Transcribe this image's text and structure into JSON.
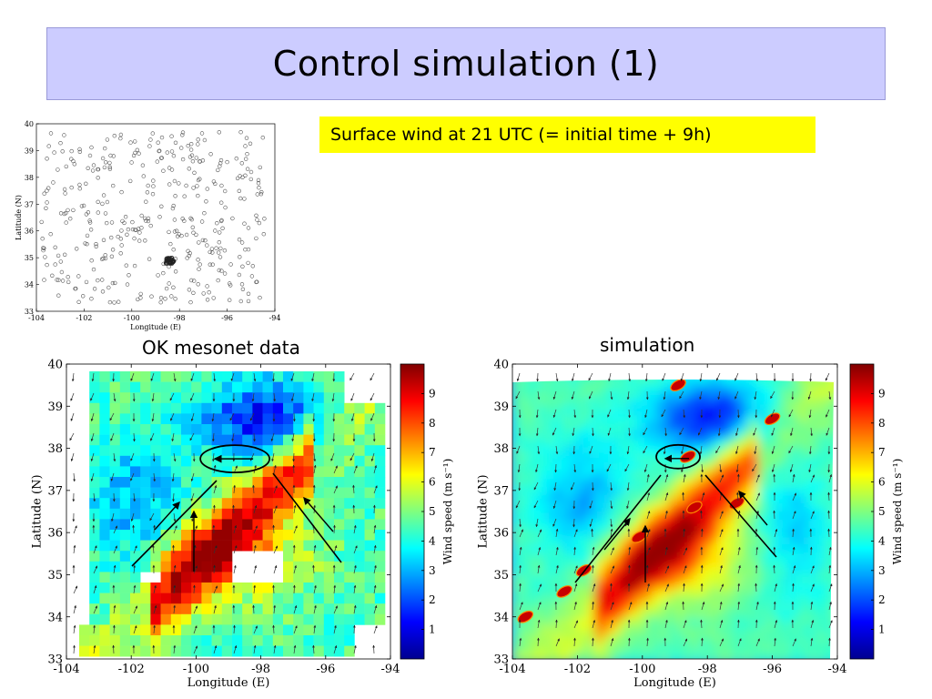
{
  "slide": {
    "title": "Control simulation (1)",
    "caption": "Surface wind at 21 UTC (= initial time + 9h)",
    "highlight_color": "#ffff00",
    "title_bg": "#ccccff"
  },
  "panels": {
    "stations_label": "",
    "mesonet_label": "OK mesonet data",
    "simulation_label": "simulation"
  },
  "chart_data": [
    {
      "type": "scatter",
      "name": "station-locations",
      "xlabel": "Longitude (E)",
      "ylabel": "Latitude (N)",
      "xlim": [
        -104,
        -94
      ],
      "ylim": [
        33,
        40
      ],
      "xticks": [
        "-104",
        "-102",
        "-100",
        "-98",
        "-96",
        "-94"
      ],
      "yticks": [
        "33",
        "34",
        "35",
        "36",
        "37",
        "38",
        "39",
        "40"
      ],
      "marker": "open-circle",
      "description_of_points": "approx. 400 mesonet station locations, dense cluster near (-98.4, 34.9)"
    },
    {
      "type": "heatmap",
      "name": "OK mesonet data",
      "xlabel": "Longitude (E)",
      "ylabel": "Latitude (N)",
      "xlim": [
        -104,
        -94
      ],
      "ylim": [
        33,
        40
      ],
      "xticks": [
        "-104",
        "-102",
        "-100",
        "-98",
        "-96",
        "-94"
      ],
      "yticks": [
        "33",
        "34",
        "35",
        "36",
        "37",
        "38",
        "39",
        "40"
      ],
      "colorbar_label": "Wind speed (m s⁻¹)",
      "colorbar_ticks": [
        "1",
        "2",
        "3",
        "4",
        "5",
        "6",
        "7",
        "8",
        "9"
      ],
      "colorbar_range": [
        0,
        10
      ],
      "overlay": "wind vectors (arrows)",
      "annotations": [
        "ellipse near (-99, 37.8)",
        "arrows indicating convergence"
      ]
    },
    {
      "type": "heatmap",
      "name": "simulation",
      "xlabel": "Longitude (E)",
      "ylabel": "Latitude (N)",
      "xlim": [
        -104,
        -94
      ],
      "ylim": [
        33,
        40
      ],
      "xticks": [
        "-104",
        "-102",
        "-100",
        "-98",
        "-96",
        "-94"
      ],
      "yticks": [
        "33",
        "34",
        "35",
        "36",
        "37",
        "38",
        "39",
        "40"
      ],
      "colorbar_label": "Wind speed (m s⁻¹)",
      "colorbar_ticks": [
        "1",
        "2",
        "3",
        "4",
        "5",
        "6",
        "7",
        "8",
        "9"
      ],
      "colorbar_range": [
        0,
        10
      ],
      "overlay": "wind vectors (arrows)",
      "annotations": [
        "ellipse near (-99, 37.8)",
        "arrows indicating convergence"
      ]
    }
  ]
}
